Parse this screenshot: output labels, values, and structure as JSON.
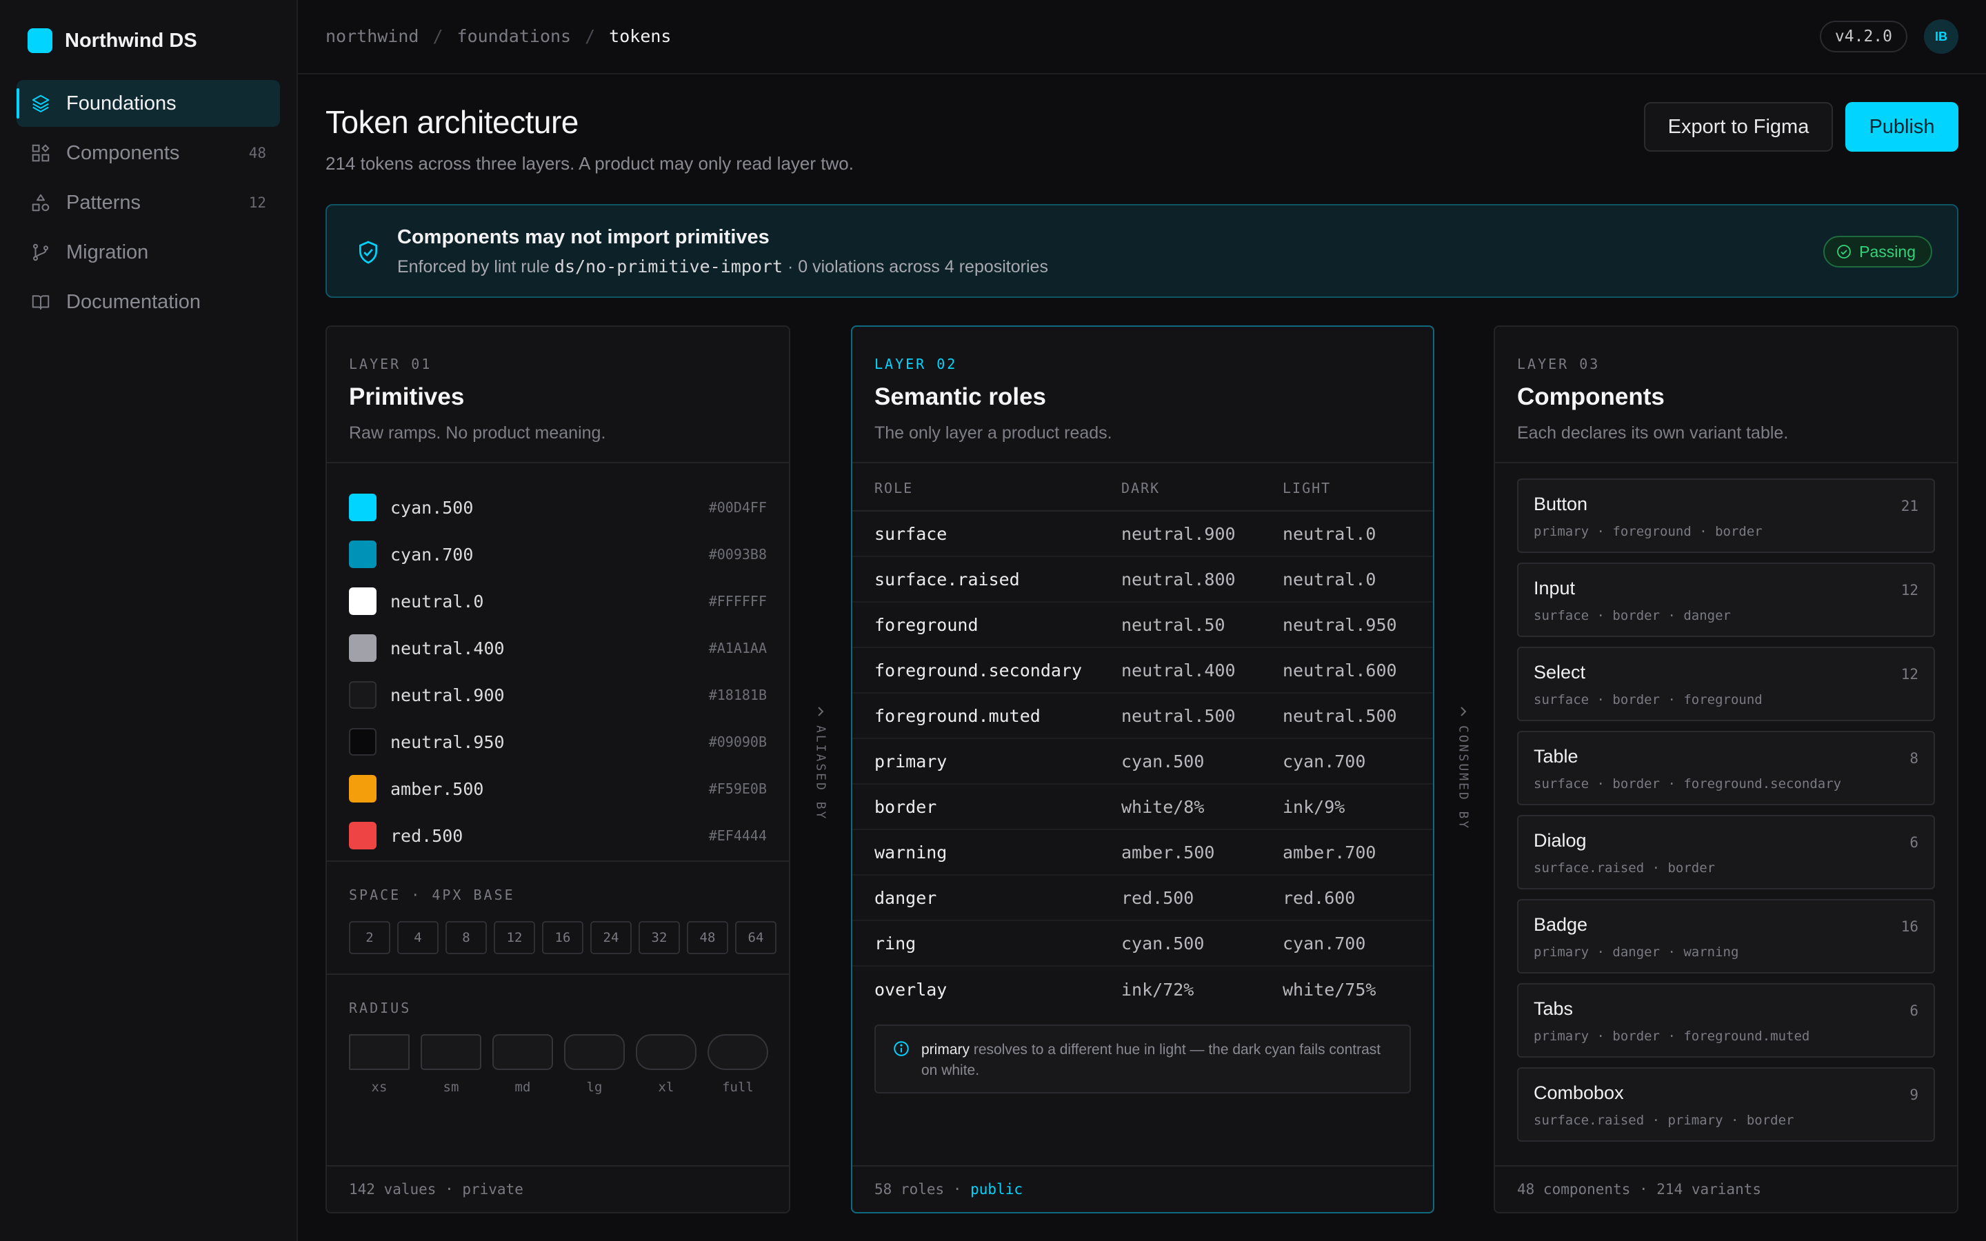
{
  "brand": {
    "name": "Northwind DS",
    "color": "#00D4FF"
  },
  "sidebar": {
    "items": [
      {
        "label": "Foundations",
        "count": "",
        "icon": "layers-icon",
        "active": true
      },
      {
        "label": "Components",
        "count": "48",
        "icon": "components-icon"
      },
      {
        "label": "Patterns",
        "count": "12",
        "icon": "shapes-icon"
      },
      {
        "label": "Migration",
        "count": "",
        "icon": "git-branch-icon"
      },
      {
        "label": "Documentation",
        "count": "",
        "icon": "book-icon"
      }
    ]
  },
  "topbar": {
    "breadcrumbs": [
      "northwind",
      "foundations",
      "tokens"
    ],
    "separator": "/",
    "version": "v4.2.0",
    "avatar_initials": "IB"
  },
  "header": {
    "title": "Token architecture",
    "subtitle": "214 tokens across three layers. A product may only read layer two.",
    "export_label": "Export to Figma",
    "publish_label": "Publish"
  },
  "banner": {
    "title": "Components may not import primitives",
    "desc_prefix": "Enforced by lint rule",
    "rule": "ds/no-primitive-import",
    "desc_suffix": "· 0 violations across 4 repositories",
    "status": "Passing"
  },
  "primitives": {
    "layer": "LAYER 01",
    "title": "Primitives",
    "subtitle": "Raw ramps. No product meaning.",
    "swatches": [
      {
        "name": "cyan.500",
        "hex": "#00D4FF"
      },
      {
        "name": "cyan.700",
        "hex": "#0093B8"
      },
      {
        "name": "neutral.0",
        "hex": "#FFFFFF"
      },
      {
        "name": "neutral.400",
        "hex": "#A1A1AA"
      },
      {
        "name": "neutral.900",
        "hex": "#18181B"
      },
      {
        "name": "neutral.950",
        "hex": "#09090B"
      },
      {
        "name": "amber.500",
        "hex": "#F59E0B"
      },
      {
        "name": "red.500",
        "hex": "#EF4444"
      }
    ],
    "space_label": "SPACE · 4PX BASE",
    "space_values": [
      "2",
      "4",
      "8",
      "12",
      "16",
      "24",
      "32",
      "48",
      "64"
    ],
    "radius_label": "RADIUS",
    "radius_names": [
      "xs",
      "sm",
      "md",
      "lg",
      "xl",
      "full"
    ],
    "footer": "142 values · private"
  },
  "connectors": {
    "aliased": "ALIASED BY",
    "consumed": "CONSUMED BY"
  },
  "semantic": {
    "layer": "LAYER 02",
    "title": "Semantic roles",
    "subtitle": "The only layer a product reads.",
    "columns": [
      "ROLE",
      "DARK",
      "LIGHT"
    ],
    "rows": [
      {
        "role": "surface",
        "dark": "neutral.900",
        "light": "neutral.0"
      },
      {
        "role": "surface.raised",
        "dark": "neutral.800",
        "light": "neutral.0"
      },
      {
        "role": "foreground",
        "dark": "neutral.50",
        "light": "neutral.950"
      },
      {
        "role": "foreground.secondary",
        "dark": "neutral.400",
        "light": "neutral.600"
      },
      {
        "role": "foreground.muted",
        "dark": "neutral.500",
        "light": "neutral.500"
      },
      {
        "role": "primary",
        "dark": "cyan.500",
        "light": "cyan.700"
      },
      {
        "role": "border",
        "dark": "white/8%",
        "light": "ink/9%"
      },
      {
        "role": "warning",
        "dark": "amber.500",
        "light": "amber.700"
      },
      {
        "role": "danger",
        "dark": "red.500",
        "light": "red.600"
      },
      {
        "role": "ring",
        "dark": "cyan.500",
        "light": "cyan.700"
      },
      {
        "role": "overlay",
        "dark": "ink/72%",
        "light": "white/75%"
      }
    ],
    "note_term": "primary",
    "note_text": "resolves to a different hue in light — the dark cyan fails contrast on white.",
    "footer_count": "58 roles",
    "footer_sep": "·",
    "footer_visibility": "public"
  },
  "components": {
    "layer": "LAYER 03",
    "title": "Components",
    "subtitle": "Each declares its own variant table.",
    "items": [
      {
        "name": "Button",
        "count": "21",
        "tokens": "primary · foreground · border"
      },
      {
        "name": "Input",
        "count": "12",
        "tokens": "surface · border · danger"
      },
      {
        "name": "Select",
        "count": "12",
        "tokens": "surface · border · foreground"
      },
      {
        "name": "Table",
        "count": "8",
        "tokens": "surface · border · foreground.secondary"
      },
      {
        "name": "Dialog",
        "count": "6",
        "tokens": "surface.raised · border"
      },
      {
        "name": "Badge",
        "count": "16",
        "tokens": "primary · danger · warning"
      },
      {
        "name": "Tabs",
        "count": "6",
        "tokens": "primary · border · foreground.muted"
      },
      {
        "name": "Combobox",
        "count": "9",
        "tokens": "surface.raised · primary · border"
      }
    ],
    "footer": "48 components · 214 variants"
  }
}
